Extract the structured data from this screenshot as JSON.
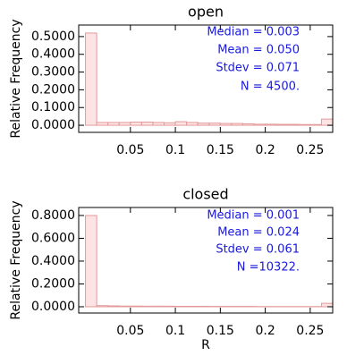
{
  "chart_data": [
    {
      "type": "histogram",
      "title": "open",
      "y_label": "Relative Frequency",
      "bins": [
        0,
        0.0125,
        0.025,
        0.0375,
        0.05,
        0.0625,
        0.075,
        0.0875,
        0.1,
        0.1125,
        0.125,
        0.1375,
        0.15,
        0.1625,
        0.175,
        0.1875,
        0.2,
        0.2125,
        0.225,
        0.2375,
        0.25,
        0.2625,
        0.275
      ],
      "values": [
        0.52,
        0.016,
        0.016,
        0.016,
        0.018,
        0.018,
        0.016,
        0.014,
        0.02,
        0.016,
        0.012,
        0.012,
        0.01,
        0.01,
        0.008,
        0.006,
        0.006,
        0.005,
        0.005,
        0.004,
        0.004,
        0.035
      ],
      "color": "#fde3e3",
      "edge_color": "#e39a9a",
      "xlim": [
        -0.0075,
        0.275
      ],
      "xticks": [
        0.05,
        0.1,
        0.15,
        0.2,
        0.25
      ],
      "ylim": [
        -0.04,
        0.565
      ],
      "yticks": [
        {
          "value": 0,
          "label": "0.0000"
        },
        {
          "value": 0.1,
          "label": "0.1000"
        },
        {
          "value": 0.2,
          "label": "0.2000"
        },
        {
          "value": 0.3,
          "label": "0.3000"
        },
        {
          "value": 0.4,
          "label": "0.4000"
        },
        {
          "value": 0.5,
          "label": "0.5000"
        }
      ],
      "annotations": [
        "Median =   0.003",
        "Mean = 0.050",
        "Stdev = 0.071",
        "N =  4500."
      ]
    },
    {
      "type": "histogram",
      "title": "closed",
      "y_label": "Relative Frequency",
      "x_label": "R",
      "bins": [
        0,
        0.0125,
        0.025,
        0.0375,
        0.05,
        0.0625,
        0.075,
        0.0875,
        0.1,
        0.1125,
        0.125,
        0.1375,
        0.15,
        0.1625,
        0.175,
        0.1875,
        0.2,
        0.2125,
        0.225,
        0.2375,
        0.25,
        0.2625,
        0.275
      ],
      "values": [
        0.8,
        0.01,
        0.008,
        0.006,
        0.006,
        0.005,
        0.005,
        0.005,
        0.004,
        0.004,
        0.004,
        0.003,
        0.003,
        0.003,
        0.003,
        0.002,
        0.002,
        0.002,
        0.002,
        0.002,
        0.002,
        0.03
      ],
      "color": "#fde3e3",
      "edge_color": "#e39a9a",
      "xlim": [
        -0.0075,
        0.275
      ],
      "xticks": [
        0.05,
        0.1,
        0.15,
        0.2,
        0.25
      ],
      "ylim": [
        -0.055,
        0.87
      ],
      "yticks": [
        {
          "value": 0,
          "label": "0.0000"
        },
        {
          "value": 0.2,
          "label": "0.2000"
        },
        {
          "value": 0.4,
          "label": "0.4000"
        },
        {
          "value": 0.6,
          "label": "0.6000"
        },
        {
          "value": 0.8,
          "label": "0.8000"
        }
      ],
      "annotations": [
        "Median =   0.001",
        "Mean =   0.024",
        "Stdev = 0.061",
        "N =10322."
      ]
    }
  ]
}
